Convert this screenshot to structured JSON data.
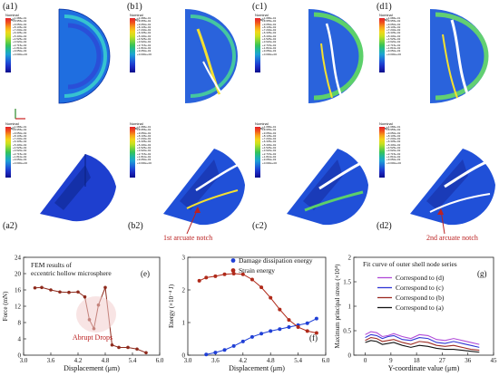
{
  "panels": {
    "a1": "(a1)",
    "b1": "(b1)",
    "c1": "(c1)",
    "d1": "(d1)",
    "a2": "(a2)",
    "b2": "(b2)",
    "c2": "(c2)",
    "d2": "(d2)",
    "e": "(e)",
    "f": "(f)",
    "g": "(g)"
  },
  "colorbar_title": "Nominal Strain",
  "colorbar_ticks": [
    "+1.086e-01",
    "+9.955e-02",
    "+9.050e-02",
    "+8.145e-02",
    "+7.240e-02",
    "+6.335e-02",
    "+5.430e-02",
    "+4.525e-02",
    "+3.620e-02",
    "+2.715e-02",
    "+1.810e-02",
    "+9.050e-03",
    "+0.000e+00"
  ],
  "colorbar_colors": [
    "#e4222a",
    "#f0521e",
    "#f7a11a",
    "#f4d61a",
    "#c8e11f",
    "#7fd53a",
    "#36c357",
    "#1fb69e",
    "#1ea3d3",
    "#1f74d9",
    "#1e45d4",
    "#1a23b8",
    "#0a0f8a"
  ],
  "axis_triad": {
    "x": "X",
    "y": "Y",
    "z": "Z"
  },
  "annotations": {
    "notch1": "1st arcuate notch",
    "notch2": "2nd arcuate notch"
  },
  "chart_data": [
    {
      "type": "line",
      "title": "FEM results of eccentric hollow microsphere",
      "xlabel": "Displacement (μm)",
      "ylabel": "Force (mN)",
      "xlim": [
        3.0,
        6.0
      ],
      "ylim": [
        0,
        24
      ],
      "xticks": [
        "3.0",
        "3.6",
        "4.2",
        "4.8",
        "5.4",
        "6.0"
      ],
      "yticks": [
        "0",
        "4",
        "8",
        "12",
        "16",
        "20",
        "24"
      ],
      "annotation": "Abrupt Drops",
      "color": "#8e2a1c",
      "x": [
        3.25,
        3.4,
        3.6,
        3.8,
        4.0,
        4.2,
        4.35,
        4.45,
        4.55,
        4.65,
        4.8,
        4.95,
        5.1,
        5.3,
        5.5,
        5.7
      ],
      "y": [
        16.5,
        16.6,
        16.0,
        15.5,
        15.4,
        15.5,
        14.3,
        8.7,
        6.5,
        12.3,
        16.6,
        2.5,
        1.9,
        1.9,
        1.5,
        0.6
      ]
    },
    {
      "type": "line",
      "xlabel": "Displacement (μm)",
      "ylabel": "Energy (×10⁻⁴ J)",
      "xlim": [
        3.0,
        6.0
      ],
      "ylim": [
        0,
        3
      ],
      "xticks": [
        "3.0",
        "3.6",
        "4.2",
        "4.8",
        "5.4",
        "6.0"
      ],
      "yticks": [
        "0",
        "1",
        "2",
        "3"
      ],
      "legend": "top-right",
      "series": [
        {
          "name": "Damage dissipation energy",
          "color": "#1f3fd6",
          "x": [
            3.4,
            3.6,
            3.8,
            4.0,
            4.2,
            4.4,
            4.6,
            4.8,
            5.0,
            5.2,
            5.4,
            5.6,
            5.8
          ],
          "y": [
            0.02,
            0.08,
            0.16,
            0.28,
            0.42,
            0.56,
            0.66,
            0.74,
            0.8,
            0.86,
            0.92,
            0.98,
            1.12
          ]
        },
        {
          "name": "Strain energy",
          "color": "#b02a1a",
          "x": [
            3.25,
            3.4,
            3.6,
            3.8,
            4.0,
            4.2,
            4.4,
            4.6,
            4.8,
            5.0,
            5.2,
            5.4,
            5.6,
            5.8
          ],
          "y": [
            2.28,
            2.38,
            2.42,
            2.48,
            2.5,
            2.48,
            2.32,
            2.08,
            1.76,
            1.4,
            1.08,
            0.86,
            0.74,
            0.68
          ]
        }
      ]
    },
    {
      "type": "line",
      "title": "Fit curve of outer shell node series",
      "xlabel": "Y-coordinate value (μm)",
      "ylabel": "Maximum principal stress (×10⁴)",
      "xlim": [
        -4,
        45
      ],
      "ylim": [
        0,
        2.0
      ],
      "xticks": [
        "0",
        "9",
        "18",
        "27",
        "36",
        "45"
      ],
      "yticks": [
        "0",
        "0.5",
        "1",
        "1.5",
        "2"
      ],
      "legend": "top-right",
      "series": [
        {
          "name": "Correspond to (d)",
          "color": "#b04ad8",
          "x": [
            0,
            2,
            4,
            6,
            8,
            10,
            13,
            16,
            19,
            22,
            25,
            28,
            31,
            34,
            37,
            40
          ],
          "y": [
            0.42,
            0.48,
            0.46,
            0.38,
            0.4,
            0.44,
            0.38,
            0.34,
            0.42,
            0.4,
            0.32,
            0.3,
            0.34,
            0.3,
            0.26,
            0.22
          ]
        },
        {
          "name": "Correspond to (c)",
          "color": "#2f35d4",
          "x": [
            0,
            2,
            4,
            6,
            8,
            10,
            13,
            16,
            19,
            22,
            25,
            28,
            31,
            34,
            37,
            40
          ],
          "y": [
            0.36,
            0.42,
            0.4,
            0.34,
            0.38,
            0.4,
            0.32,
            0.3,
            0.36,
            0.34,
            0.26,
            0.24,
            0.28,
            0.24,
            0.2,
            0.16
          ]
        },
        {
          "name": "Correspond to (b)",
          "color": "#9c2a22",
          "x": [
            0,
            2,
            4,
            6,
            8,
            10,
            13,
            16,
            19,
            22,
            25,
            28,
            31,
            34,
            37,
            40
          ],
          "y": [
            0.3,
            0.36,
            0.34,
            0.28,
            0.3,
            0.32,
            0.26,
            0.22,
            0.28,
            0.26,
            0.2,
            0.18,
            0.2,
            0.16,
            0.12,
            0.1
          ]
        },
        {
          "name": "Correspond to (a)",
          "color": "#111111",
          "x": [
            0,
            2,
            4,
            6,
            8,
            10,
            13,
            16,
            19,
            22,
            25,
            28,
            31,
            34,
            37,
            40
          ],
          "y": [
            0.26,
            0.3,
            0.28,
            0.22,
            0.24,
            0.26,
            0.2,
            0.16,
            0.2,
            0.18,
            0.14,
            0.12,
            0.12,
            0.1,
            0.08,
            0.06
          ]
        }
      ]
    }
  ]
}
